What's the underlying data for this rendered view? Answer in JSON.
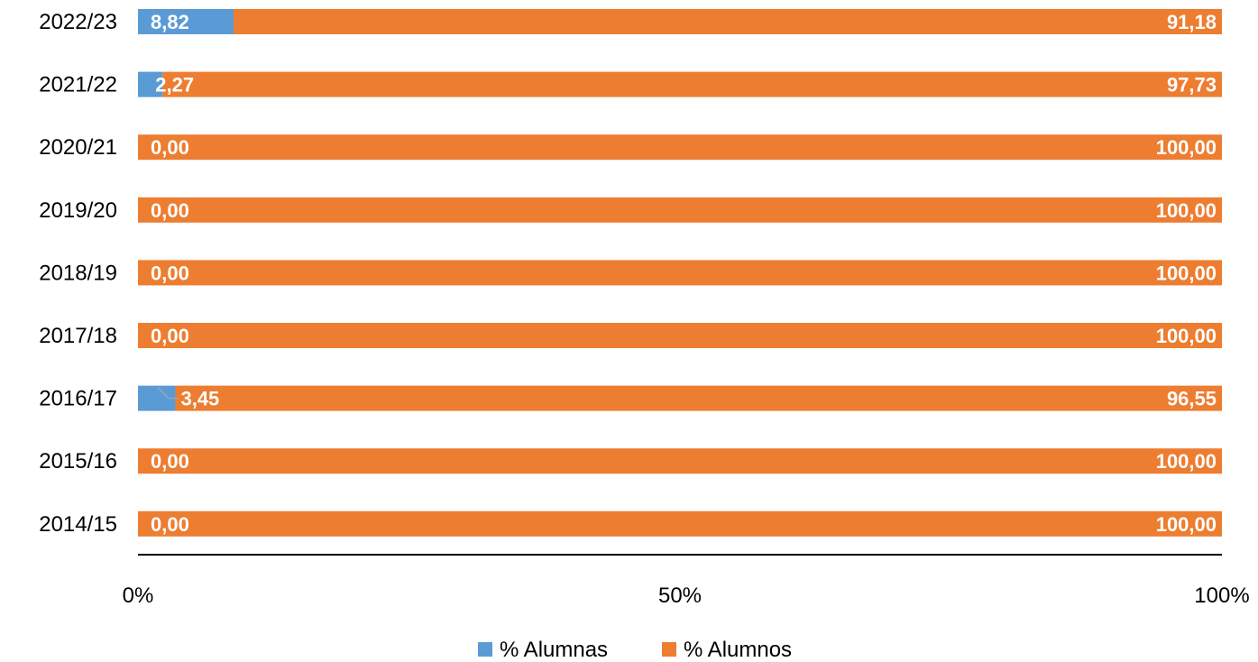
{
  "chart_data": {
    "type": "bar",
    "orientation": "horizontal",
    "stacked": "percent",
    "categories": [
      "2022/23",
      "2021/22",
      "2020/21",
      "2019/20",
      "2018/19",
      "2017/18",
      "2016/17",
      "2015/16",
      "2014/15"
    ],
    "series": [
      {
        "name": "% Alumnas",
        "color": "#5B9BD5",
        "values": [
          8.82,
          2.27,
          0,
          0,
          0,
          0,
          3.45,
          0,
          0
        ],
        "labels": [
          "8,82",
          "2,27",
          "0,00",
          "0,00",
          "0,00",
          "0,00",
          "3,45",
          "0,00",
          "0,00"
        ]
      },
      {
        "name": "% Alumnos",
        "color": "#ED7D31",
        "values": [
          91.18,
          97.73,
          100,
          100,
          100,
          100,
          96.55,
          100,
          100
        ],
        "labels": [
          "91,18",
          "97,73",
          "100,00",
          "100,00",
          "100,00",
          "100,00",
          "96,55",
          "100,00",
          "100,00"
        ]
      }
    ],
    "x_ticks": [
      "0%",
      "50%",
      "100%"
    ],
    "xlim": [
      0,
      100
    ],
    "grid": false,
    "legend_position": "bottom",
    "title": "",
    "xlabel": "",
    "ylabel": ""
  }
}
